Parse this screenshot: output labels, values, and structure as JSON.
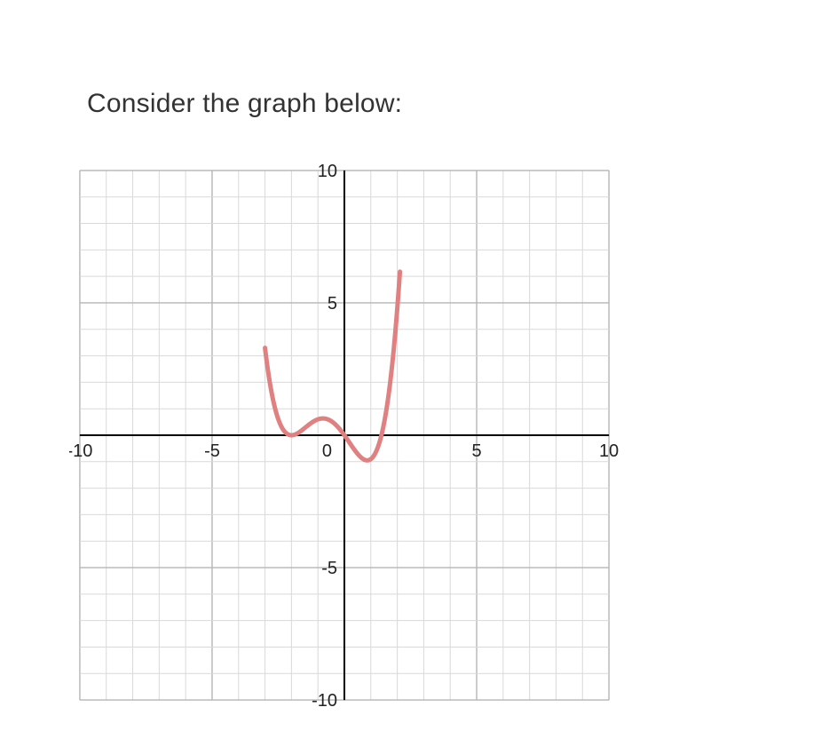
{
  "prompt": "Consider the graph below:",
  "chart": {
    "type": "line",
    "background_color": "#ffffff",
    "grid_minor_color": "#d9d9d9",
    "grid_major_color": "#b5b5b5",
    "axis_color": "#000000",
    "curve_color": "#e08080",
    "curve_width": 5,
    "xlim": [
      -10.4,
      10.4
    ],
    "ylim": [
      -10.4,
      10.4
    ],
    "minor_step": 1,
    "major_step": 5,
    "x_ticks": [
      {
        "value": -10,
        "label": "-10"
      },
      {
        "value": -5,
        "label": "-5"
      },
      {
        "value": 0,
        "label": "0"
      },
      {
        "value": 5,
        "label": "5"
      },
      {
        "value": 10,
        "label": "10"
      }
    ],
    "y_ticks": [
      {
        "value": 10,
        "label": "10"
      },
      {
        "value": 5,
        "label": "5"
      },
      {
        "value": -5,
        "label": "-5"
      },
      {
        "value": -10,
        "label": "-10"
      }
    ],
    "label_fontsize": 20,
    "function": {
      "type": "polynomial_scaled",
      "scale": 0.25,
      "roots": [
        -2,
        -2,
        0,
        1.4
      ],
      "x_start": -3.0,
      "x_end": 2.1,
      "samples": 260
    }
  }
}
